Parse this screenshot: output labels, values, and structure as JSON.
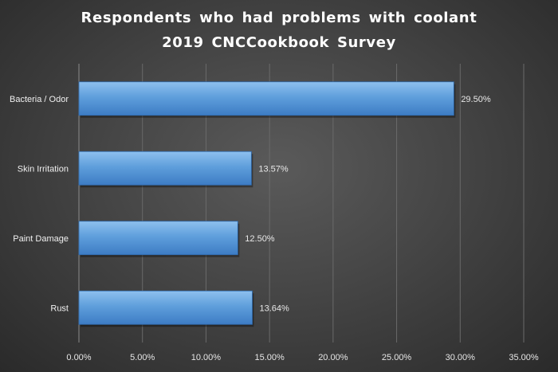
{
  "chart_data": {
    "type": "bar",
    "orientation": "horizontal",
    "title": [
      "Respondents who had problems with coolant",
      "2019 CNCCookbook Survey"
    ],
    "categories": [
      "Bacteria / Odor",
      "Skin Irritation",
      "Paint Damage",
      "Rust"
    ],
    "values": [
      29.5,
      13.57,
      12.5,
      13.64
    ],
    "data_labels": [
      "29.50%",
      "13.57%",
      "12.50%",
      "13.64%"
    ],
    "xlim": [
      0,
      35
    ],
    "x_ticks": [
      0,
      5,
      10,
      15,
      20,
      25,
      30,
      35
    ],
    "x_tick_labels": [
      "0.00%",
      "5.00%",
      "10.00%",
      "15.00%",
      "20.00%",
      "25.00%",
      "30.00%",
      "35.00%"
    ],
    "xlabel": "",
    "ylabel": "",
    "grid": "vertical",
    "legend": "none",
    "bar_color": "#5b9bd5",
    "background_color": "#404040"
  }
}
